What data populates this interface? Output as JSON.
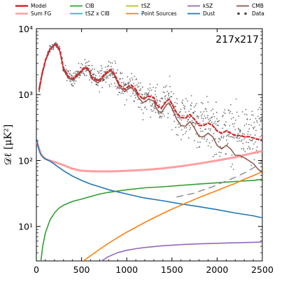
{
  "chart_data": {
    "type": "line",
    "panel_label": "217x217",
    "ylabel": "𝒟ℓ [μK²]",
    "xlim": [
      0,
      2500
    ],
    "ylim": [
      3,
      10000
    ],
    "yscale": "log",
    "x_ticks": [
      0,
      500,
      1000,
      1500,
      2000,
      2500
    ],
    "x_tick_labels": [
      "0",
      "500",
      "1000",
      "1500",
      "2000",
      "2500"
    ],
    "y_ticks": [
      10,
      100,
      1000,
      10000
    ],
    "y_tick_labels": [
      "10¹",
      "10²",
      "10³",
      "10⁴"
    ],
    "legend": [
      {
        "name": "Model",
        "color": "#d62728",
        "style": "line"
      },
      {
        "name": "Sum FG",
        "color": "#ff9e9e",
        "style": "line"
      },
      {
        "name": "CIB",
        "color": "#2ca02c",
        "style": "line"
      },
      {
        "name": "tSZ x CIB",
        "color": "#17becf",
        "style": "line"
      },
      {
        "name": "tSZ",
        "color": "#bcbd22",
        "style": "line"
      },
      {
        "name": "Point Sources",
        "color": "#ff7f0e",
        "style": "line"
      },
      {
        "name": "kSZ",
        "color": "#9467bd",
        "style": "line"
      },
      {
        "name": "Dust",
        "color": "#1f77b4",
        "style": "line"
      },
      {
        "name": "CMB",
        "color": "#8c564b",
        "style": "line"
      },
      {
        "name": "Data",
        "color": "#444444",
        "style": "points"
      }
    ],
    "series": [
      {
        "name": "CMB",
        "color": "#8c564b",
        "x": [
          30,
          60,
          100,
          150,
          200,
          220,
          260,
          300,
          350,
          400,
          430,
          470,
          520,
          540,
          580,
          620,
          680,
          720,
          760,
          800,
          820,
          860,
          920,
          980,
          1000,
          1050,
          1100,
          1130,
          1180,
          1240,
          1300,
          1330,
          1380,
          1440,
          1470,
          1510,
          1550,
          1600,
          1650,
          1700,
          1750,
          1800,
          1850,
          1900,
          1950,
          2000,
          2050,
          2100,
          2150,
          2200,
          2250,
          2300,
          2350,
          2400,
          2450,
          2500
        ],
        "y": [
          1100,
          1900,
          3200,
          4800,
          5600,
          5700,
          4500,
          2400,
          1800,
          1650,
          1800,
          2000,
          2400,
          2500,
          2300,
          1700,
          1500,
          1700,
          2000,
          2200,
          2300,
          2000,
          1300,
          1100,
          1180,
          1300,
          1100,
          900,
          750,
          850,
          800,
          600,
          520,
          700,
          750,
          580,
          430,
          340,
          330,
          390,
          310,
          230,
          230,
          260,
          230,
          170,
          150,
          170,
          150,
          120,
          120,
          110,
          100,
          90,
          75,
          65
        ]
      },
      {
        "name": "Model",
        "color": "#d62728",
        "x": [
          30,
          60,
          100,
          150,
          200,
          220,
          260,
          300,
          350,
          400,
          430,
          470,
          520,
          540,
          580,
          620,
          680,
          720,
          760,
          800,
          820,
          860,
          920,
          980,
          1000,
          1050,
          1100,
          1130,
          1180,
          1240,
          1300,
          1330,
          1380,
          1440,
          1470,
          1510,
          1550,
          1600,
          1650,
          1700,
          1750,
          1800,
          1850,
          1900,
          1950,
          2000,
          2050,
          2100,
          2150,
          2200,
          2250,
          2300,
          2350,
          2400,
          2450,
          2500
        ],
        "y": [
          1200,
          2000,
          3300,
          4900,
          5700,
          5800,
          4600,
          2500,
          1900,
          1750,
          1900,
          2100,
          2500,
          2600,
          2400,
          1800,
          1600,
          1800,
          2100,
          2300,
          2400,
          2100,
          1400,
          1200,
          1280,
          1400,
          1200,
          1000,
          850,
          950,
          900,
          700,
          620,
          800,
          850,
          680,
          530,
          450,
          440,
          500,
          420,
          340,
          340,
          370,
          340,
          280,
          260,
          280,
          260,
          240,
          240,
          230,
          230,
          220,
          210,
          205
        ]
      },
      {
        "name": "Sum FG",
        "color": "#ff9e9e",
        "x": [
          0,
          50,
          100,
          200,
          300,
          400,
          500,
          600,
          700,
          800,
          900,
          1000,
          1200,
          1400,
          1600,
          1800,
          2000,
          2200,
          2400,
          2500
        ],
        "y": [
          200,
          125,
          105,
          95,
          85,
          75,
          70,
          69,
          68.5,
          68.5,
          69,
          70,
          72,
          76,
          82,
          90,
          100,
          112,
          130,
          140
        ]
      },
      {
        "name": "Dust",
        "color": "#1f77b4",
        "x": [
          0,
          20,
          40,
          60,
          80,
          100,
          150,
          200,
          300,
          400,
          500,
          600,
          700,
          800,
          1000,
          1200,
          1400,
          1600,
          1800,
          2000,
          2200,
          2400,
          2500
        ],
        "y": [
          220,
          160,
          130,
          117,
          110,
          106,
          98,
          88,
          70,
          58,
          50,
          44,
          40,
          36,
          31,
          27,
          24.5,
          22,
          20,
          18,
          16,
          14.5,
          13.5
        ]
      },
      {
        "name": "CIB",
        "color": "#2ca02c",
        "x": [
          50,
          70,
          100,
          150,
          200,
          250,
          300,
          400,
          500,
          600,
          700,
          800,
          1000,
          1200,
          1400,
          1600,
          1800,
          2000,
          2200,
          2400,
          2500
        ],
        "y": [
          3,
          5,
          8,
          12.5,
          16,
          19,
          21,
          24,
          26,
          28.5,
          31,
          33,
          36,
          38.5,
          40,
          42,
          44,
          46,
          48,
          50,
          52
        ]
      },
      {
        "name": "Point Sources",
        "color": "#ff7f0e",
        "x": [
          520,
          600,
          700,
          800,
          900,
          1000,
          1100,
          1200,
          1300,
          1400,
          1500,
          1600,
          1700,
          1800,
          1900,
          2000,
          2100,
          2200,
          2300,
          2400,
          2500
        ],
        "y": [
          3,
          3.6,
          4.5,
          5.6,
          6.8,
          8.2,
          9.7,
          11.5,
          13.5,
          15.8,
          18.3,
          21,
          24,
          27.5,
          31,
          35,
          40,
          45,
          52,
          59,
          68
        ]
      },
      {
        "name": "kSZ",
        "color": "#9467bd",
        "x": [
          720,
          800,
          900,
          1000,
          1100,
          1200,
          1400,
          1600,
          1800,
          2000,
          2200,
          2400,
          2500
        ],
        "y": [
          3,
          3.5,
          4,
          4.35,
          4.6,
          4.8,
          5.1,
          5.3,
          5.45,
          5.55,
          5.65,
          5.75,
          5.8
        ]
      },
      {
        "name": "tSZ x CIB",
        "color": "#17becf",
        "x": [],
        "y": []
      },
      {
        "name": "tSZ",
        "color": "#bcbd22",
        "x": [],
        "y": []
      }
    ],
    "data_series": {
      "name": "Data",
      "color": "#444444",
      "x_range": [
        30,
        2500
      ],
      "note_points": "scatter follows the Model curve with noise growing at high multipoles"
    },
    "dashed_residual": {
      "color": "#888888",
      "x": [
        1550,
        1650,
        1750,
        1850,
        1950,
        2050,
        2150,
        2250,
        2350,
        2450,
        2500
      ],
      "y": [
        28,
        30,
        32,
        36,
        40,
        46,
        52,
        60,
        70,
        85,
        100
      ]
    }
  }
}
